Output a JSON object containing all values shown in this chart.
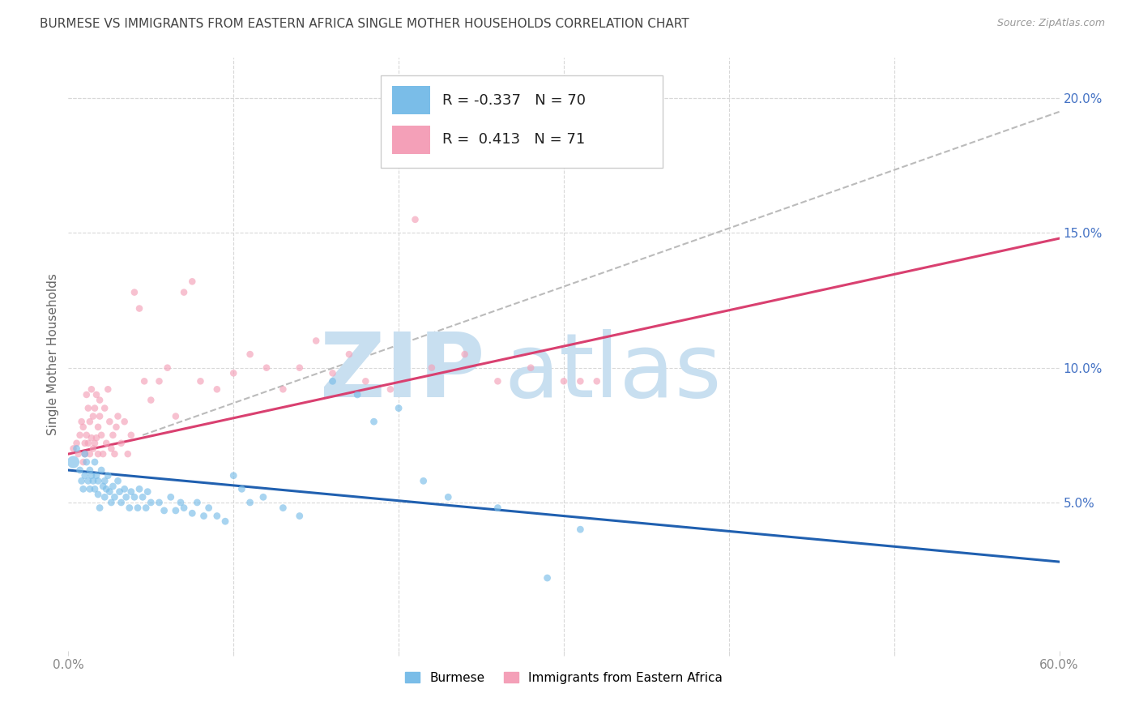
{
  "title": "BURMESE VS IMMIGRANTS FROM EASTERN AFRICA SINGLE MOTHER HOUSEHOLDS CORRELATION CHART",
  "source": "Source: ZipAtlas.com",
  "ylabel": "Single Mother Households",
  "legend_blue_r": "-0.337",
  "legend_blue_n": "70",
  "legend_pink_r": "0.413",
  "legend_pink_n": "71",
  "legend_label_blue": "Burmese",
  "legend_label_pink": "Immigrants from Eastern Africa",
  "right_yticks": [
    "20.0%",
    "15.0%",
    "10.0%",
    "5.0%"
  ],
  "right_ytick_values": [
    0.2,
    0.15,
    0.1,
    0.05
  ],
  "xlim": [
    0.0,
    0.6
  ],
  "ylim": [
    -0.005,
    0.215
  ],
  "blue_color": "#7abde8",
  "pink_color": "#f4a0b8",
  "blue_line_color": "#2060b0",
  "pink_line_color": "#d94070",
  "dashed_line_color": "#bbbbbb",
  "watermark_zip_color": "#c8dff0",
  "watermark_atlas_color": "#c8dff0",
  "background_color": "#ffffff",
  "grid_color": "#d8d8d8",
  "title_color": "#444444",
  "right_axis_color": "#4472c4",
  "xtick_color": "#888888",
  "blue_dots_x": [
    0.003,
    0.005,
    0.007,
    0.008,
    0.009,
    0.01,
    0.01,
    0.011,
    0.012,
    0.013,
    0.013,
    0.014,
    0.015,
    0.016,
    0.016,
    0.017,
    0.018,
    0.018,
    0.019,
    0.02,
    0.021,
    0.022,
    0.022,
    0.023,
    0.024,
    0.025,
    0.026,
    0.027,
    0.028,
    0.03,
    0.031,
    0.032,
    0.034,
    0.035,
    0.037,
    0.038,
    0.04,
    0.042,
    0.043,
    0.045,
    0.047,
    0.048,
    0.05,
    0.055,
    0.058,
    0.062,
    0.065,
    0.068,
    0.07,
    0.075,
    0.078,
    0.082,
    0.085,
    0.09,
    0.095,
    0.1,
    0.105,
    0.11,
    0.118,
    0.13,
    0.14,
    0.16,
    0.175,
    0.185,
    0.2,
    0.215,
    0.23,
    0.26,
    0.29,
    0.31
  ],
  "blue_dots_y": [
    0.065,
    0.07,
    0.062,
    0.058,
    0.055,
    0.068,
    0.06,
    0.065,
    0.058,
    0.062,
    0.055,
    0.06,
    0.058,
    0.065,
    0.055,
    0.06,
    0.058,
    0.053,
    0.048,
    0.062,
    0.056,
    0.058,
    0.052,
    0.055,
    0.06,
    0.054,
    0.05,
    0.056,
    0.052,
    0.058,
    0.054,
    0.05,
    0.055,
    0.052,
    0.048,
    0.054,
    0.052,
    0.048,
    0.055,
    0.052,
    0.048,
    0.054,
    0.05,
    0.05,
    0.047,
    0.052,
    0.047,
    0.05,
    0.048,
    0.046,
    0.05,
    0.045,
    0.048,
    0.045,
    0.043,
    0.06,
    0.055,
    0.05,
    0.052,
    0.048,
    0.045,
    0.095,
    0.09,
    0.08,
    0.085,
    0.058,
    0.052,
    0.048,
    0.022,
    0.04
  ],
  "blue_dots_size": [
    120,
    40,
    40,
    40,
    40,
    40,
    40,
    40,
    40,
    40,
    40,
    40,
    40,
    40,
    40,
    40,
    40,
    40,
    40,
    40,
    40,
    40,
    40,
    40,
    40,
    40,
    40,
    40,
    40,
    40,
    40,
    40,
    40,
    40,
    40,
    40,
    40,
    40,
    40,
    40,
    40,
    40,
    40,
    40,
    40,
    40,
    40,
    40,
    40,
    40,
    40,
    40,
    40,
    40,
    40,
    40,
    40,
    40,
    40,
    40,
    40,
    40,
    40,
    40,
    40,
    40,
    40,
    40,
    40,
    40
  ],
  "pink_dots_x": [
    0.003,
    0.005,
    0.006,
    0.007,
    0.008,
    0.009,
    0.009,
    0.01,
    0.01,
    0.011,
    0.011,
    0.012,
    0.012,
    0.013,
    0.013,
    0.014,
    0.014,
    0.015,
    0.015,
    0.016,
    0.016,
    0.017,
    0.017,
    0.018,
    0.018,
    0.019,
    0.019,
    0.02,
    0.021,
    0.022,
    0.023,
    0.024,
    0.025,
    0.026,
    0.027,
    0.028,
    0.029,
    0.03,
    0.032,
    0.034,
    0.036,
    0.038,
    0.04,
    0.043,
    0.046,
    0.05,
    0.055,
    0.06,
    0.065,
    0.07,
    0.075,
    0.08,
    0.09,
    0.1,
    0.11,
    0.12,
    0.13,
    0.14,
    0.15,
    0.16,
    0.17,
    0.18,
    0.195,
    0.21,
    0.22,
    0.24,
    0.26,
    0.28,
    0.3,
    0.31,
    0.32
  ],
  "pink_dots_y": [
    0.07,
    0.072,
    0.068,
    0.075,
    0.08,
    0.078,
    0.065,
    0.072,
    0.068,
    0.09,
    0.075,
    0.085,
    0.072,
    0.08,
    0.068,
    0.074,
    0.092,
    0.082,
    0.07,
    0.085,
    0.072,
    0.09,
    0.074,
    0.068,
    0.078,
    0.088,
    0.082,
    0.075,
    0.068,
    0.085,
    0.072,
    0.092,
    0.08,
    0.07,
    0.075,
    0.068,
    0.078,
    0.082,
    0.072,
    0.08,
    0.068,
    0.075,
    0.128,
    0.122,
    0.095,
    0.088,
    0.095,
    0.1,
    0.082,
    0.128,
    0.132,
    0.095,
    0.092,
    0.098,
    0.105,
    0.1,
    0.092,
    0.1,
    0.11,
    0.098,
    0.105,
    0.095,
    0.092,
    0.155,
    0.1,
    0.105,
    0.095,
    0.1,
    0.095,
    0.095,
    0.095
  ],
  "blue_line_x": [
    0.0,
    0.6
  ],
  "blue_line_y": [
    0.062,
    0.028
  ],
  "pink_line_x": [
    0.0,
    0.6
  ],
  "pink_line_y": [
    0.068,
    0.148
  ],
  "dashed_line_x": [
    0.045,
    0.6
  ],
  "dashed_line_y": [
    0.075,
    0.195
  ],
  "dot_size": 38,
  "alpha_dots": 0.65
}
